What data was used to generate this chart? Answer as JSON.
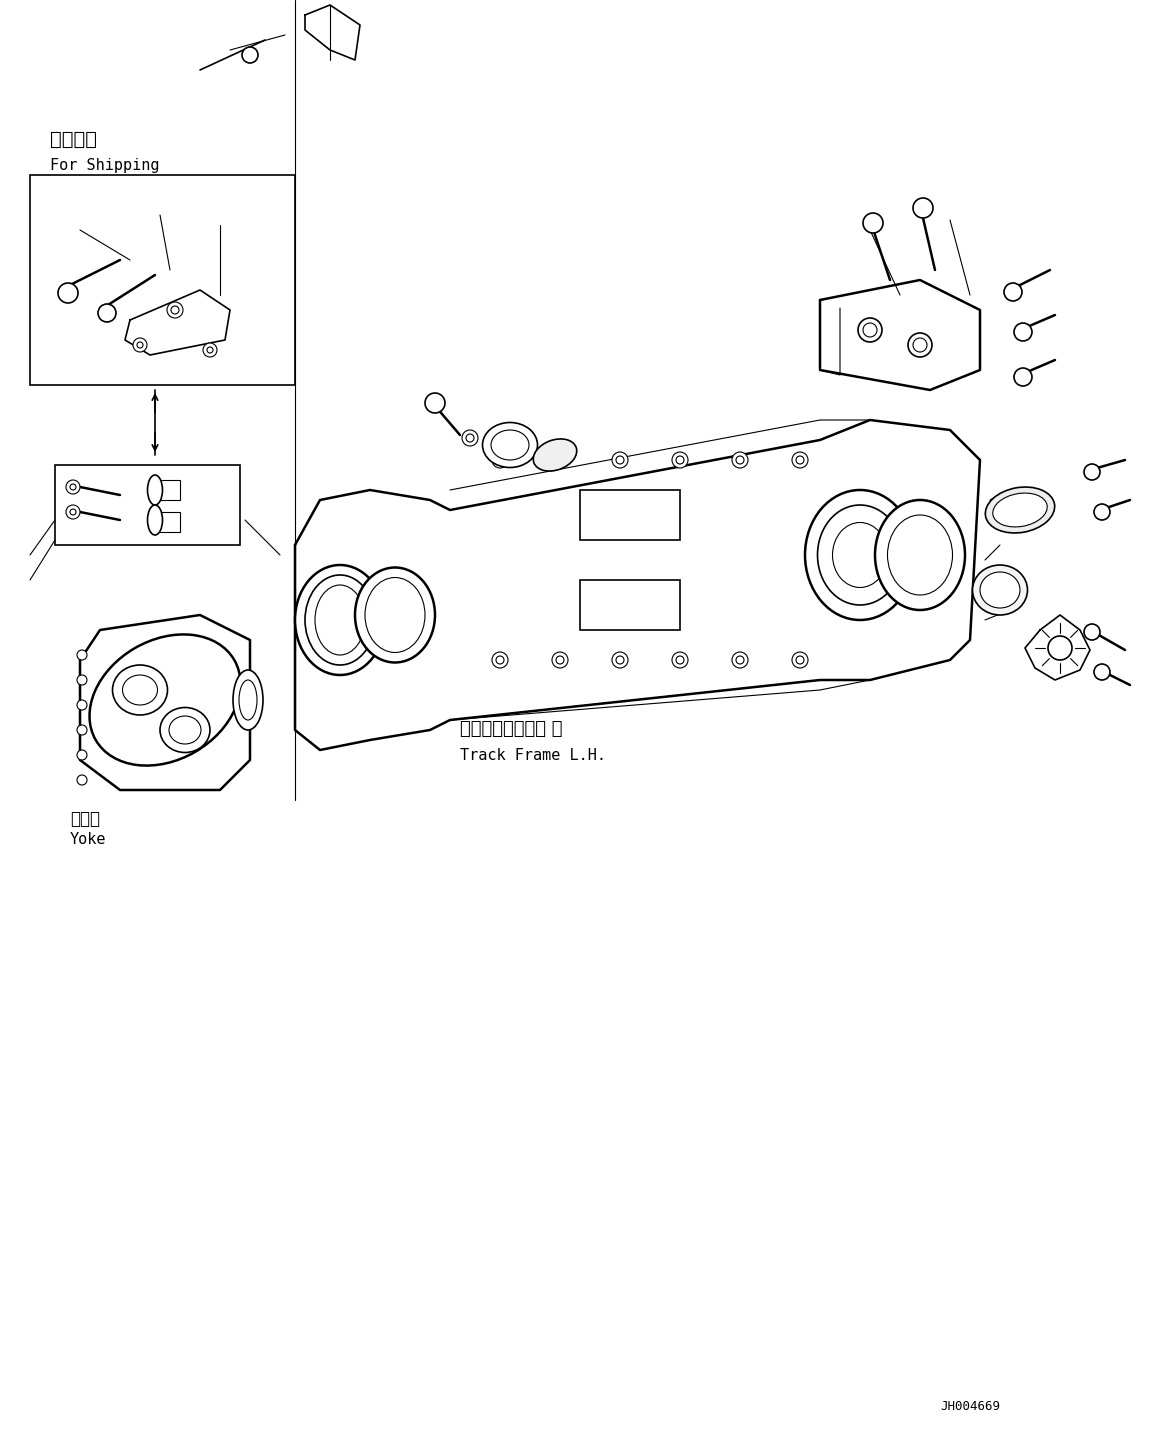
{
  "bg_color": "#ffffff",
  "line_color": "#000000",
  "fig_width": 11.63,
  "fig_height": 14.36,
  "dpi": 100,
  "part_id": "JH004669",
  "labels": {
    "shipping_jp": "運斐部品",
    "shipping_en": "For Shipping",
    "track_frame_jp": "トラックフレーム 左",
    "track_frame_en": "Track Frame L.H.",
    "yoke_jp": "ヨーク",
    "yoke_en": "Yoke"
  }
}
